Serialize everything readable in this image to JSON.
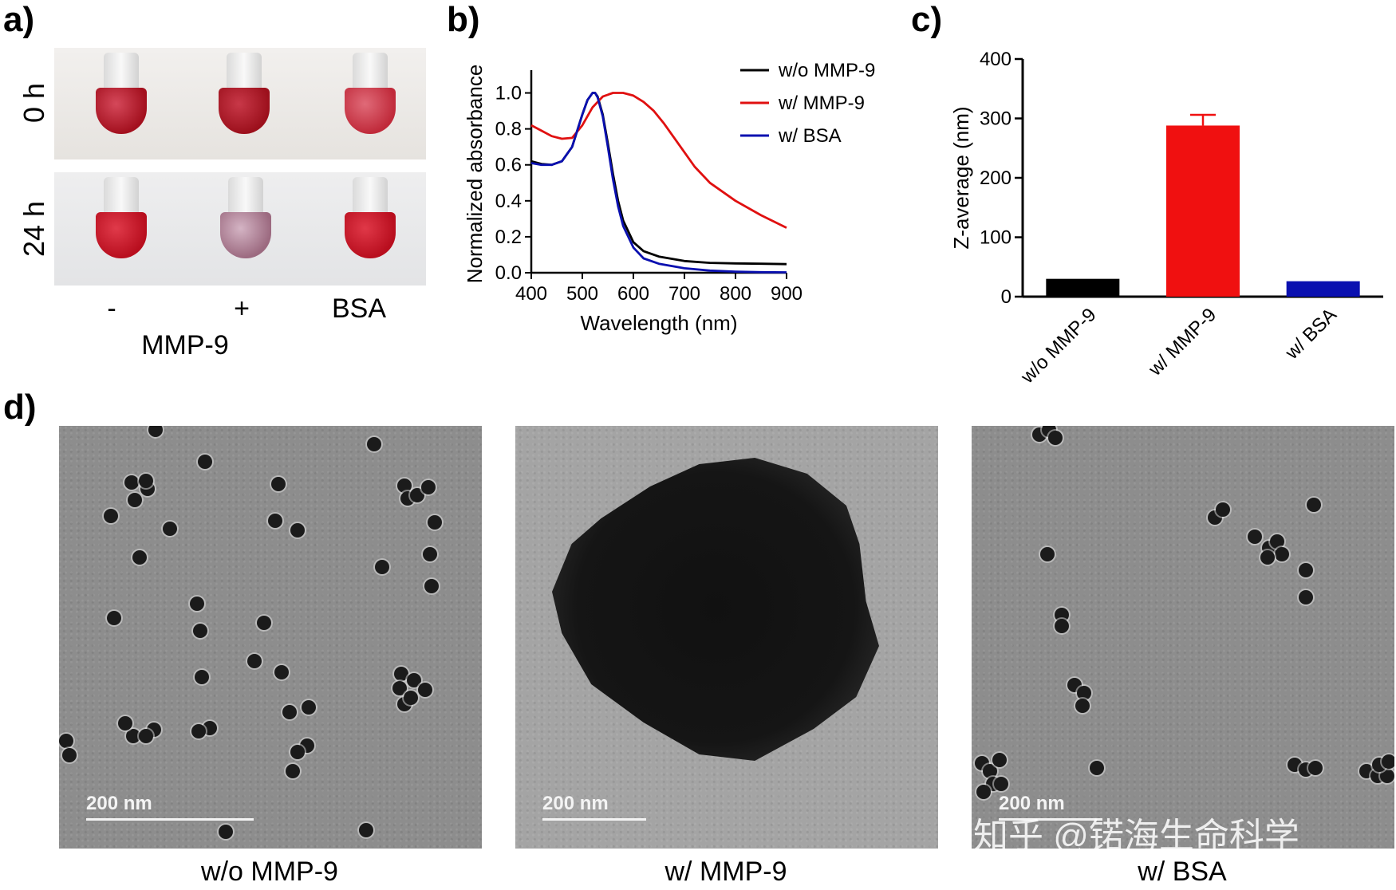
{
  "panels": {
    "a": {
      "label": "a)",
      "row_labels": [
        "0 h",
        "24 h"
      ],
      "column_labels": [
        "-",
        "+",
        "BSA"
      ],
      "group_label": "MMP-9"
    },
    "b": {
      "label": "b)"
    },
    "c": {
      "label": "c)"
    },
    "d": {
      "label": "d)",
      "scale_bar": "200 nm",
      "captions": [
        "w/o MMP-9",
        "w/ MMP-9",
        "w/ BSA"
      ],
      "watermark": "知乎 @锘海生命科学"
    }
  },
  "colors": {
    "black_series": "#000000",
    "red_series": "#e01010",
    "blue_series": "#0a10b0",
    "tube_red": "#b3101e",
    "tube_pale": "#b48598"
  },
  "chart_data": [
    {
      "type": "line",
      "panel": "b",
      "xlabel": "Wavelength (nm)",
      "ylabel": "Normalized absorbance",
      "xlim": [
        400,
        900
      ],
      "ylim": [
        0,
        1.1
      ],
      "xticks": [
        "400",
        "500",
        "600",
        "700",
        "800",
        "900"
      ],
      "yticks": [
        "0.0",
        "0.2",
        "0.4",
        "0.6",
        "0.8",
        "1.0"
      ],
      "legend_position": "top-right",
      "series": [
        {
          "name": "w/o MMP-9",
          "color": "#000000",
          "x": [
            400,
            420,
            440,
            460,
            480,
            500,
            510,
            520,
            525,
            530,
            540,
            550,
            560,
            570,
            580,
            600,
            620,
            650,
            700,
            750,
            800,
            850,
            900
          ],
          "y": [
            0.62,
            0.605,
            0.6,
            0.62,
            0.7,
            0.88,
            0.96,
            1.0,
            1.0,
            0.98,
            0.88,
            0.72,
            0.55,
            0.4,
            0.29,
            0.17,
            0.12,
            0.09,
            0.065,
            0.055,
            0.052,
            0.05,
            0.048
          ]
        },
        {
          "name": "w/ MMP-9",
          "color": "#e01010",
          "x": [
            400,
            420,
            440,
            460,
            480,
            500,
            520,
            540,
            560,
            580,
            600,
            620,
            640,
            660,
            680,
            700,
            720,
            750,
            800,
            850,
            900
          ],
          "y": [
            0.82,
            0.79,
            0.76,
            0.745,
            0.75,
            0.82,
            0.92,
            0.98,
            1.0,
            1.0,
            0.985,
            0.95,
            0.9,
            0.83,
            0.75,
            0.67,
            0.59,
            0.5,
            0.4,
            0.32,
            0.25
          ]
        },
        {
          "name": "w/ BSA",
          "color": "#0a10b0",
          "x": [
            400,
            420,
            440,
            460,
            480,
            500,
            510,
            520,
            525,
            530,
            540,
            550,
            560,
            570,
            580,
            600,
            620,
            650,
            700,
            750,
            800,
            850,
            900
          ],
          "y": [
            0.61,
            0.6,
            0.6,
            0.62,
            0.7,
            0.88,
            0.96,
            1.0,
            1.0,
            0.975,
            0.87,
            0.7,
            0.52,
            0.37,
            0.26,
            0.14,
            0.08,
            0.05,
            0.025,
            0.012,
            0.006,
            0.003,
            0.002
          ]
        }
      ]
    },
    {
      "type": "bar",
      "panel": "c",
      "ylabel": "Z-average (nm)",
      "ylim": [
        0,
        400
      ],
      "yticks": [
        "0",
        "100",
        "200",
        "300",
        "400"
      ],
      "categories": [
        "w/o MMP-9",
        "w/ MMP-9",
        "w/ BSA"
      ],
      "values": [
        30,
        288,
        26
      ],
      "error": [
        0,
        18,
        0
      ],
      "bar_colors": [
        "#000000",
        "#f01010",
        "#0a10b0"
      ]
    }
  ]
}
